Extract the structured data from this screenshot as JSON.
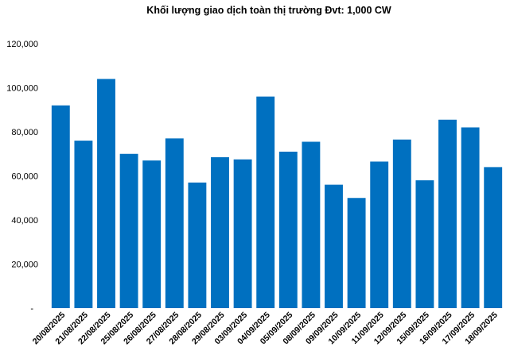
{
  "chart_data": {
    "type": "bar",
    "title": "Khối lượng giao dịch toàn thị trường Đvt: 1,000 CW",
    "xlabel": "",
    "ylabel": "",
    "ylim": [
      0,
      120000
    ],
    "yticks": [
      0,
      20000,
      40000,
      60000,
      80000,
      100000,
      120000
    ],
    "ytick_labels": [
      "-",
      "20,000",
      "40,000",
      "60,000",
      "80,000",
      "100,000",
      "120,000"
    ],
    "grid": false,
    "legend": "none",
    "bar_color": "#0070c0",
    "categories": [
      "20/08/2025",
      "21/08/2025",
      "22/08/2025",
      "25/08/2025",
      "26/08/2025",
      "27/08/2025",
      "28/08/2025",
      "29/08/2025",
      "03/09/2025",
      "04/09/2025",
      "05/09/2025",
      "08/09/2025",
      "09/09/2025",
      "10/09/2025",
      "11/09/2025",
      "12/09/2025",
      "15/09/2025",
      "16/09/2025",
      "17/09/2025",
      "18/09/2025"
    ],
    "values": [
      92000,
      76000,
      104000,
      70000,
      67000,
      77000,
      57000,
      68500,
      67500,
      96000,
      71000,
      75500,
      56000,
      50000,
      66500,
      76500,
      58000,
      85500,
      82000,
      64000
    ]
  }
}
